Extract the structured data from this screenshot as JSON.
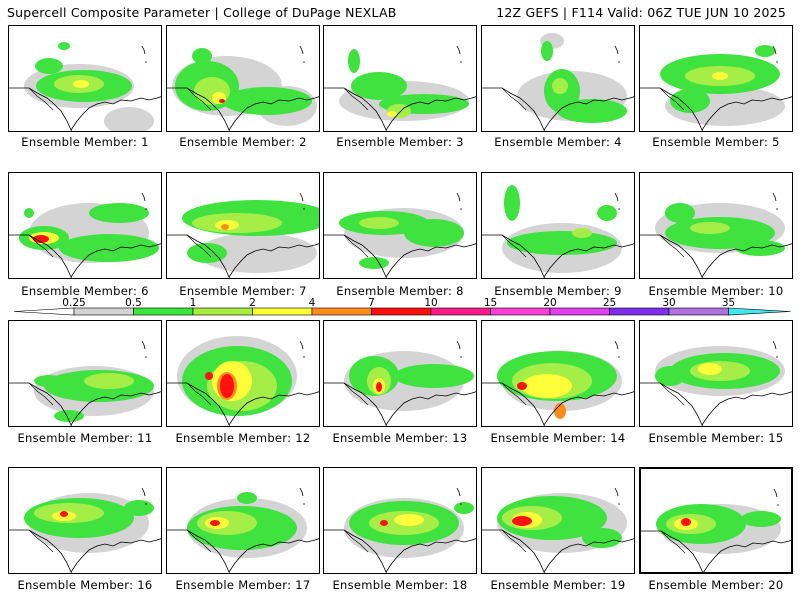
{
  "header": {
    "left_title": "Supercell Composite Parameter | College of DuPage NEXLAB",
    "right_title": "12Z GEFS | F114 Valid: 06Z TUE JUN 10 2025"
  },
  "panels": [
    {
      "label": "Ensemble Member: 1"
    },
    {
      "label": "Ensemble Member: 2"
    },
    {
      "label": "Ensemble Member: 3"
    },
    {
      "label": "Ensemble Member: 4"
    },
    {
      "label": "Ensemble Member: 5"
    },
    {
      "label": "Ensemble Member: 6"
    },
    {
      "label": "Ensemble Member: 7"
    },
    {
      "label": "Ensemble Member: 8"
    },
    {
      "label": "Ensemble Member: 9"
    },
    {
      "label": "Ensemble Member: 10"
    },
    {
      "label": "Ensemble Member: 11"
    },
    {
      "label": "Ensemble Member: 12"
    },
    {
      "label": "Ensemble Member: 13"
    },
    {
      "label": "Ensemble Member: 14"
    },
    {
      "label": "Ensemble Member: 15"
    },
    {
      "label": "Ensemble Member: 16"
    },
    {
      "label": "Ensemble Member: 17"
    },
    {
      "label": "Ensemble Member: 18"
    },
    {
      "label": "Ensemble Member: 19"
    },
    {
      "label": "Ensemble Member: 20"
    }
  ],
  "colorbar": {
    "ticks": [
      "0.25",
      "0.5",
      "1",
      "2",
      "4",
      "7",
      "10",
      "15",
      "20",
      "25",
      "30",
      "35"
    ],
    "colors": [
      "#d2d2d2",
      "#39e639",
      "#a7ee3f",
      "#ffff36",
      "#ff8c1a",
      "#ff1010",
      "#ff1a8c",
      "#ff40d9",
      "#e23ff0",
      "#7d2ef0",
      "#b070e0",
      "#40e8f0"
    ]
  },
  "field_colors": {
    "gray": "#d4d4d4",
    "green": "#3fe23f",
    "lime": "#a5ee47",
    "yellow": "#ffff3a",
    "orange": "#ff8c1a",
    "red": "#ff1212"
  }
}
